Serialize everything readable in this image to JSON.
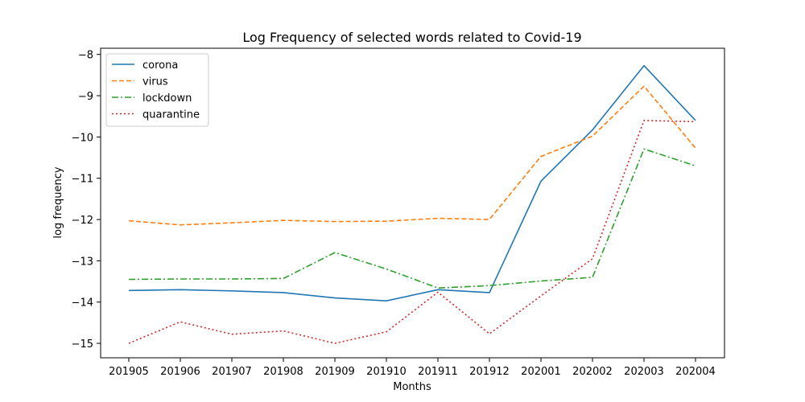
{
  "chart_data": {
    "type": "line",
    "title": "Log Frequency of selected words related to Covid-19",
    "xlabel": "Months",
    "ylabel": "log frequency",
    "categories": [
      "201905",
      "201906",
      "201907",
      "201908",
      "201909",
      "201910",
      "201911",
      "201912",
      "202001",
      "202002",
      "202003",
      "202004"
    ],
    "ylim": [
      -15.35,
      -7.85
    ],
    "yticks": [
      -15,
      -14,
      -13,
      -12,
      -11,
      -10,
      -9,
      -8
    ],
    "grid": false,
    "legend": "top-left",
    "series": [
      {
        "name": "corona",
        "color": "#1f77b4",
        "style": "solid",
        "values": [
          -13.72,
          -13.7,
          -13.73,
          -13.77,
          -13.9,
          -13.97,
          -13.7,
          -13.77,
          -11.07,
          -9.83,
          -8.27,
          -9.6
        ]
      },
      {
        "name": "virus",
        "color": "#ff7f0e",
        "style": "dashed",
        "values": [
          -12.03,
          -12.13,
          -12.08,
          -12.02,
          -12.05,
          -12.04,
          -11.97,
          -12.0,
          -10.47,
          -9.98,
          -8.77,
          -10.27
        ]
      },
      {
        "name": "lockdown",
        "color": "#2ca02c",
        "style": "dashdot",
        "values": [
          -13.45,
          -13.44,
          -13.44,
          -13.43,
          -12.8,
          -13.2,
          -13.66,
          -13.6,
          -13.49,
          -13.4,
          -10.29,
          -10.7
        ]
      },
      {
        "name": "quarantine",
        "color": "#d62728",
        "style": "dotted",
        "values": [
          -15.0,
          -14.48,
          -14.78,
          -14.7,
          -15.0,
          -14.72,
          -13.76,
          -14.77,
          -13.85,
          -12.95,
          -9.6,
          -9.63
        ]
      }
    ]
  }
}
